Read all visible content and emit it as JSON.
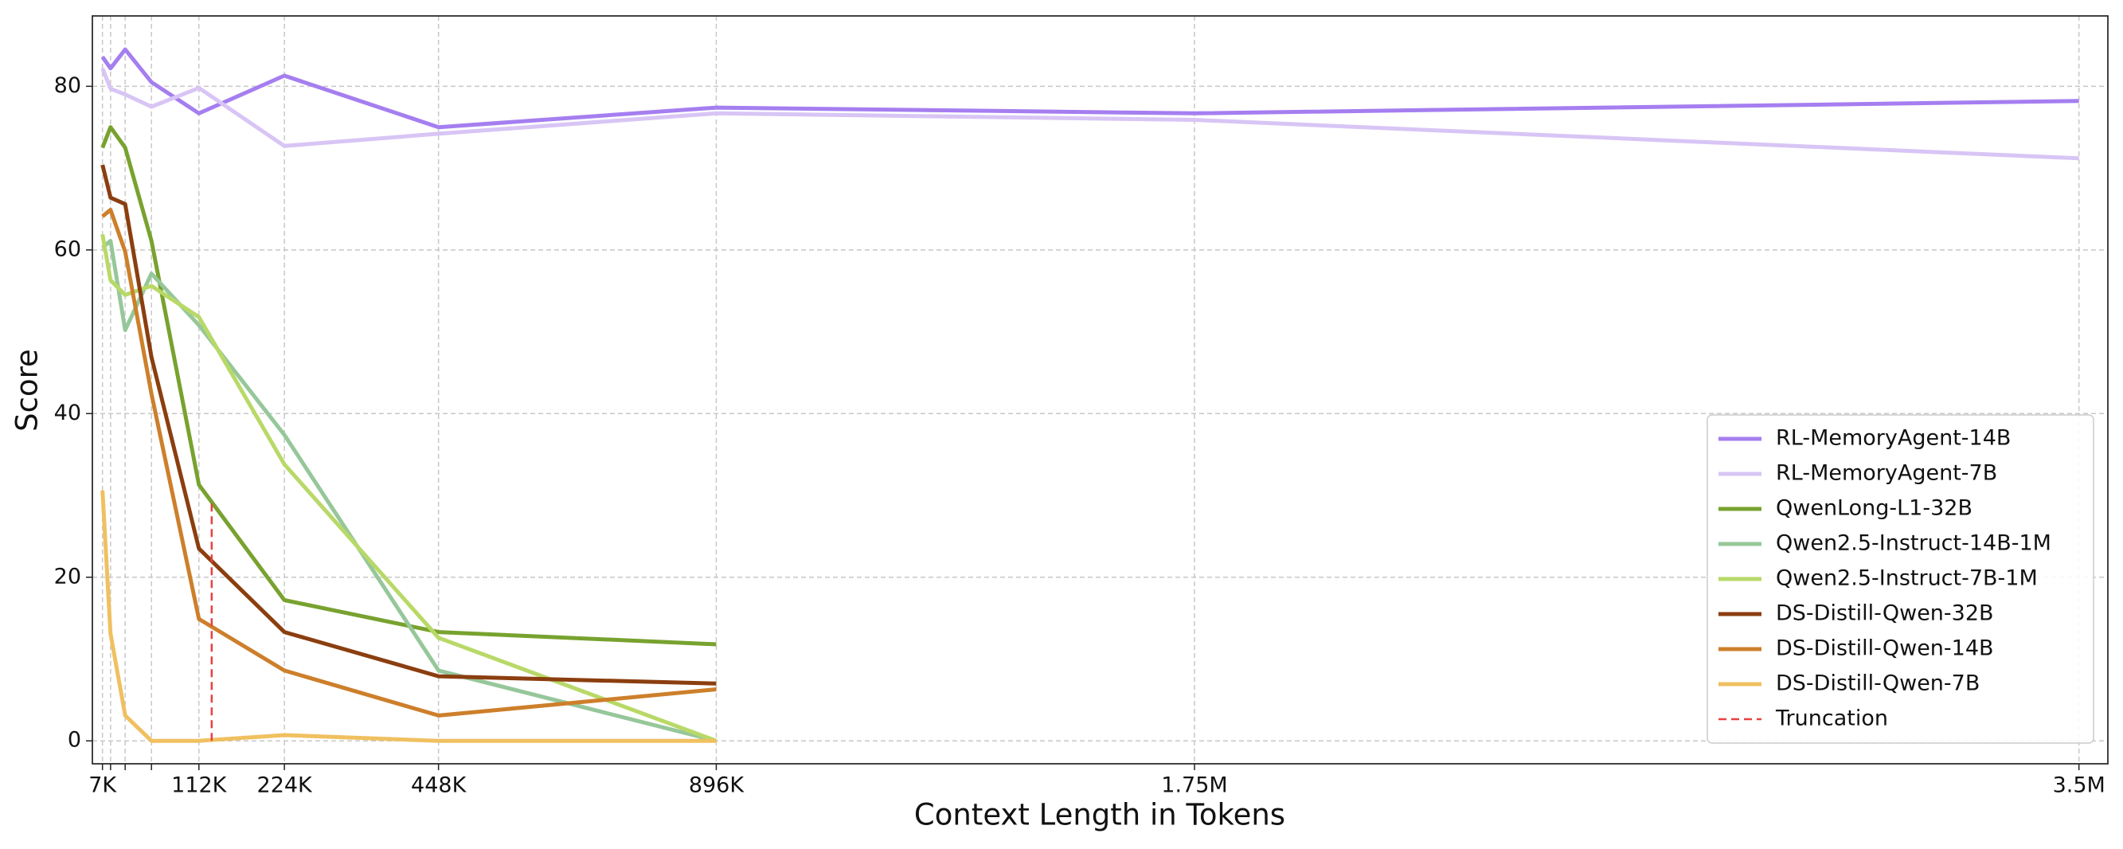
{
  "chart_data": {
    "type": "line",
    "xlabel": "Context Length in Tokens",
    "ylabel": "Score",
    "xscale": "power",
    "xpower": 0.85,
    "x": [
      7,
      14,
      28,
      56,
      112,
      224,
      448,
      896,
      1750,
      3500
    ],
    "xlim": [
      0,
      3560
    ],
    "xticks": [
      {
        "value": 7,
        "label": "7K"
      },
      {
        "value": 14,
        "label": null
      },
      {
        "value": 28,
        "label": null
      },
      {
        "value": 56,
        "label": null
      },
      {
        "value": 112,
        "label": "112K"
      },
      {
        "value": 224,
        "label": "224K"
      },
      {
        "value": 448,
        "label": "448K"
      },
      {
        "value": 896,
        "label": "896K"
      },
      {
        "value": 1750,
        "label": "1.75M"
      },
      {
        "value": 3500,
        "label": "3.5M"
      }
    ],
    "ylim": [
      -2.8,
      88.6
    ],
    "yticks": [
      0,
      20,
      40,
      60,
      80
    ],
    "grid": true,
    "legend": "lower right",
    "series": [
      {
        "name": "RL-MemoryAgent-14B",
        "color": "#a57ef0",
        "values": [
          83.6,
          82.2,
          84.5,
          80.5,
          76.7,
          81.3,
          75.0,
          77.4,
          76.7,
          78.2
        ]
      },
      {
        "name": "RL-MemoryAgent-7B",
        "color": "#d8c5f5",
        "values": [
          82.2,
          79.7,
          79.0,
          77.5,
          79.8,
          72.7,
          74.2,
          76.7,
          75.9,
          71.2
        ]
      },
      {
        "name": "QwenLong-L1-32B",
        "color": "#78a22f",
        "values": [
          72.5,
          75.0,
          72.5,
          61.1,
          31.3,
          17.2,
          13.3,
          11.8,
          null,
          null
        ]
      },
      {
        "name": "Qwen2.5-Instruct-14B-1M",
        "color": "#96c79a",
        "values": [
          60.3,
          61.1,
          50.2,
          57.1,
          50.8,
          37.4,
          8.6,
          0,
          null,
          null
        ]
      },
      {
        "name": "Qwen2.5-Instruct-7B-1M",
        "color": "#b8d968",
        "values": [
          61.9,
          56.3,
          54.5,
          55.6,
          51.8,
          33.8,
          12.6,
          0,
          null,
          null
        ]
      },
      {
        "name": "DS-Distill-Qwen-32B",
        "color": "#8b3e0f",
        "values": [
          70.4,
          66.4,
          65.6,
          46.9,
          23.5,
          13.3,
          7.9,
          7.0,
          null,
          null
        ]
      },
      {
        "name": "DS-Distill-Qwen-14B",
        "color": "#cd7f2b",
        "values": [
          64.1,
          64.9,
          59.8,
          42.4,
          14.9,
          8.6,
          3.1,
          6.3,
          null,
          null
        ]
      },
      {
        "name": "DS-Distill-Qwen-7B",
        "color": "#f0c060",
        "values": [
          30.6,
          13.1,
          3.1,
          0,
          0,
          0.7,
          0,
          0,
          null,
          null
        ]
      }
    ],
    "reference_lines": [
      {
        "name": "Truncation",
        "x": 128,
        "y": [
          0,
          29.3
        ],
        "color": "#e84040",
        "style": "dashed"
      }
    ]
  }
}
